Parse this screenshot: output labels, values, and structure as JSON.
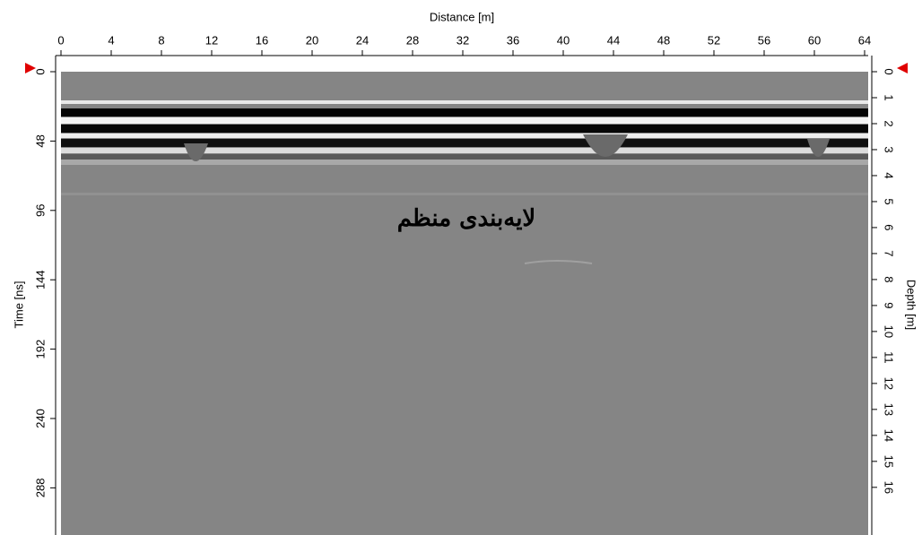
{
  "chart_data": {
    "type": "radargram",
    "xlabel": "Distance [m]",
    "ylabel": "Time [ns]",
    "y2label": "Depth [m]",
    "xlim": [
      0,
      64
    ],
    "xticks": [
      0,
      4,
      8,
      12,
      16,
      20,
      24,
      28,
      32,
      36,
      40,
      44,
      48,
      52,
      56,
      60,
      64
    ],
    "ylim": [
      0,
      320
    ],
    "yticks": [
      0,
      48,
      96,
      144,
      192,
      240,
      288
    ],
    "y2lim": [
      0,
      17.8
    ],
    "y2ticks": [
      0,
      1,
      2,
      3,
      4,
      5,
      6,
      7,
      8,
      9,
      10,
      11,
      12,
      13,
      14,
      15,
      16
    ],
    "annotation": "لایه‌بندی منظم"
  }
}
